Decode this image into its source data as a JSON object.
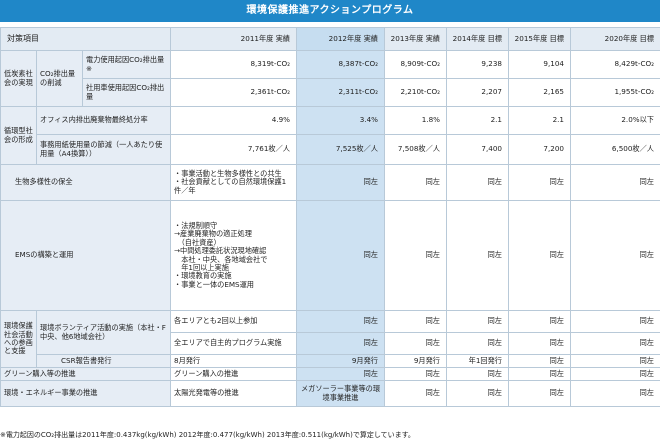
{
  "title": "環境保護推進アクションプログラム",
  "headers": {
    "item": "対策項目",
    "y2011": "2011年度 実績",
    "y2012": "2012年度 実績",
    "y2013": "2013年度 実績",
    "y2014": "2014年度 目標",
    "y2015": "2015年度 目標",
    "y2020": "2020年度 目標"
  },
  "groups": {
    "lowcarbon": "低炭素社会の実現",
    "co2": "CO₂排出量の削減",
    "recycle": "循環型社会の形成",
    "csr_activity": "環境保護社会活動への参画と支援"
  },
  "rows": {
    "electric": {
      "label": "電力使用起因CO₂排出量※",
      "v2011": "8,319t-CO₂",
      "v2012": "8,387t-CO₂",
      "v2013": "8,909t-CO₂",
      "v2014": "9,238",
      "v2015": "9,104",
      "v2020": "8,429t-CO₂"
    },
    "car": {
      "label": "社用車使用起因CO₂排出量",
      "v2011": "2,361t-CO₂",
      "v2012": "2,311t-CO₂",
      "v2013": "2,210t-CO₂",
      "v2014": "2,207",
      "v2015": "2,165",
      "v2020": "1,955t-CO₂"
    },
    "waste": {
      "label": "オフィス内排出廃棄物最終処分率",
      "v2011": "4.9%",
      "v2012": "3.4%",
      "v2013": "1.8%",
      "v2014": "2.1",
      "v2015": "2.1",
      "v2020": "2.0%以下"
    },
    "paper": {
      "label": "事務用紙使用量の節減（一人あたり使用量（A4換算））",
      "v2011": "7,761枚／人",
      "v2012": "7,525枚／人",
      "v2013": "7,508枚／人",
      "v2014": "7,400",
      "v2015": "7,200",
      "v2020": "6,500枚／人"
    },
    "bio": {
      "label": "生物多様性の保全",
      "v2011_lines": [
        "・事業活動と生物多様性との共生",
        "・社会貢献としての自然環境保護1件／年"
      ],
      "v2012": "同左",
      "v2013": "同左",
      "v2014": "同左",
      "v2015": "同左",
      "v2020": "同左"
    },
    "ems": {
      "label": "EMSの構築と運用",
      "v2011_lines": [
        "・法規制順守",
        "→産業廃棄物の適正処理",
        "　（自社資産）",
        "→中間処理委託状況現地確認",
        "　本社・中央、各地域会社で",
        "　年1回以上実施",
        "・環境教育の実施",
        "・事業と一体のEMS運用"
      ],
      "v2012": "同左",
      "v2013": "同左",
      "v2014": "同左",
      "v2015": "同左",
      "v2020": "同左"
    },
    "volunteer": {
      "label": "環境ボランティア活動の実施（本社・F中央、他6地域会社）",
      "a_v2011": "各エリアとも2回以上参加",
      "a_v2012": "同左",
      "a_v2013": "同左",
      "a_v2014": "同左",
      "a_v2015": "同左",
      "a_v2020": "同左",
      "b_v2011": "全エリアで自主的プログラム実施",
      "b_v2012": "同左",
      "b_v2013": "同左",
      "b_v2014": "同左",
      "b_v2015": "同左",
      "b_v2020": "同左"
    },
    "csr": {
      "label": "CSR報告書発行",
      "v2011": "8月発行",
      "v2012": "9月発行",
      "v2013": "9月発行",
      "v2014": "年1回発行",
      "v2015": "同左",
      "v2020": "同左"
    },
    "green": {
      "label": "グリーン購入等の推進",
      "v2011": "グリーン購入の推進",
      "v2012": "同左",
      "v2013": "同左",
      "v2014": "同左",
      "v2015": "同左",
      "v2020": "同左"
    },
    "energy": {
      "label": "環境・エネルギー事業の推進",
      "v2011": "太陽光発電等の推進",
      "v2012": "メガソーラー事業等の環境事業推進",
      "v2013": "同左",
      "v2014": "同左",
      "v2015": "同左",
      "v2020": "同左"
    }
  },
  "footnote": "※電力起因のCO₂排出量は2011年度:0.437kg(kg/kWh) 2012年度:0.477(kg/kWh) 2013年度:0.511(kg/kWh)で算定しています。"
}
